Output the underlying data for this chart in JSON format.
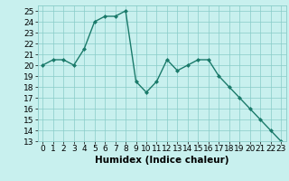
{
  "x": [
    0,
    1,
    2,
    3,
    4,
    5,
    6,
    7,
    8,
    9,
    10,
    11,
    12,
    13,
    14,
    15,
    16,
    17,
    18,
    19,
    20,
    21,
    22,
    23
  ],
  "y": [
    20,
    20.5,
    20.5,
    20,
    21.5,
    24,
    24.5,
    24.5,
    25,
    18.5,
    17.5,
    18.5,
    20.5,
    19.5,
    20,
    20.5,
    20.5,
    19,
    18,
    17,
    16,
    15,
    14,
    13
  ],
  "line_color": "#1a7a6a",
  "marker": "D",
  "marker_size": 2,
  "bg_color": "#c8f0ee",
  "grid_color": "#88ccc8",
  "xlabel": "Humidex (Indice chaleur)",
  "ylim": [
    13,
    25.5
  ],
  "xlim": [
    -0.5,
    23.5
  ],
  "yticks": [
    13,
    14,
    15,
    16,
    17,
    18,
    19,
    20,
    21,
    22,
    23,
    24,
    25
  ],
  "xticks": [
    0,
    1,
    2,
    3,
    4,
    5,
    6,
    7,
    8,
    9,
    10,
    11,
    12,
    13,
    14,
    15,
    16,
    17,
    18,
    19,
    20,
    21,
    22,
    23
  ],
  "xlabel_fontsize": 7.5,
  "tick_fontsize": 6.5,
  "line_width": 1.0
}
